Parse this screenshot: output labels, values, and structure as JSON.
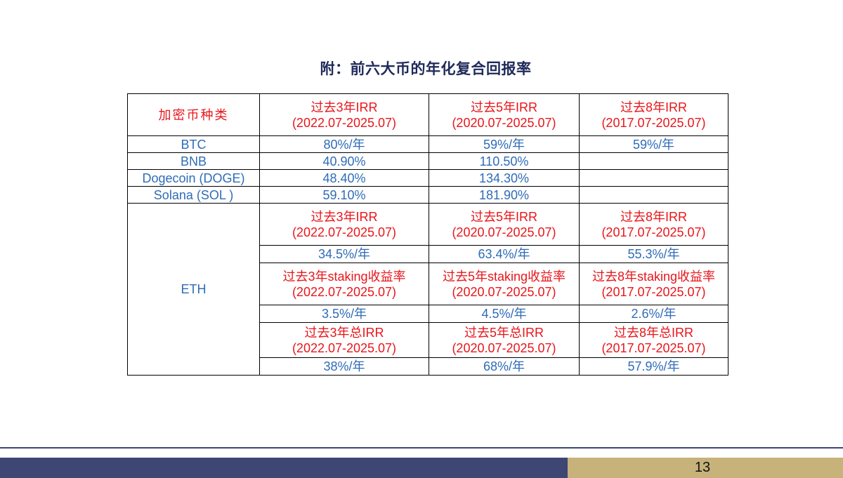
{
  "title": "附：前六大币的年化复合回报率",
  "table": {
    "corner": "加密币种类",
    "col_headers": [
      {
        "l1": "过去3年IRR",
        "l2": "(2022.07-2025.07)"
      },
      {
        "l1": "过去5年IRR",
        "l2": "(2020.07-2025.07)"
      },
      {
        "l1": "过去8年IRR",
        "l2": "(2017.07-2025.07)"
      }
    ],
    "rows": [
      {
        "name": "BTC",
        "values": [
          "80%/年",
          "59%/年",
          "59%/年"
        ]
      },
      {
        "name": "BNB",
        "values": [
          "40.90%",
          "110.50%",
          ""
        ]
      },
      {
        "name": "Dogecoin (DOGE)",
        "values": [
          "48.40%",
          "134.30%",
          ""
        ]
      },
      {
        "name": "Solana (SOL )",
        "values": [
          "59.10%",
          "181.90%",
          ""
        ]
      }
    ],
    "eth": {
      "name": "ETH",
      "irr_headers": [
        {
          "l1": "过去3年IRR",
          "l2": "(2022.07-2025.07)"
        },
        {
          "l1": "过去5年IRR",
          "l2": "(2020.07-2025.07)"
        },
        {
          "l1": "过去8年IRR",
          "l2": "(2017.07-2025.07)"
        }
      ],
      "irr_values": [
        "34.5%/年",
        "63.4%/年",
        "55.3%/年"
      ],
      "staking_headers": [
        {
          "l1": "过去3年staking收益率",
          "l2": "(2022.07-2025.07)"
        },
        {
          "l1": "过去5年staking收益率",
          "l2": "(2020.07-2025.07)"
        },
        {
          "l1": "过去8年staking收益率",
          "l2": "(2017.07-2025.07)"
        }
      ],
      "staking_values": [
        "3.5%/年",
        "4.5%/年",
        "2.6%/年"
      ],
      "total_headers": [
        {
          "l1": "过去3年总IRR",
          "l2": "(2022.07-2025.07)"
        },
        {
          "l1": "过去5年总IRR",
          "l2": "(2020.07-2025.07)"
        },
        {
          "l1": "过去8年总IRR",
          "l2": "(2017.07-2025.07)"
        }
      ],
      "total_values": [
        "38%/年",
        "68%/年",
        "57.9%/年"
      ]
    }
  },
  "footer": {
    "page_number": "13"
  }
}
